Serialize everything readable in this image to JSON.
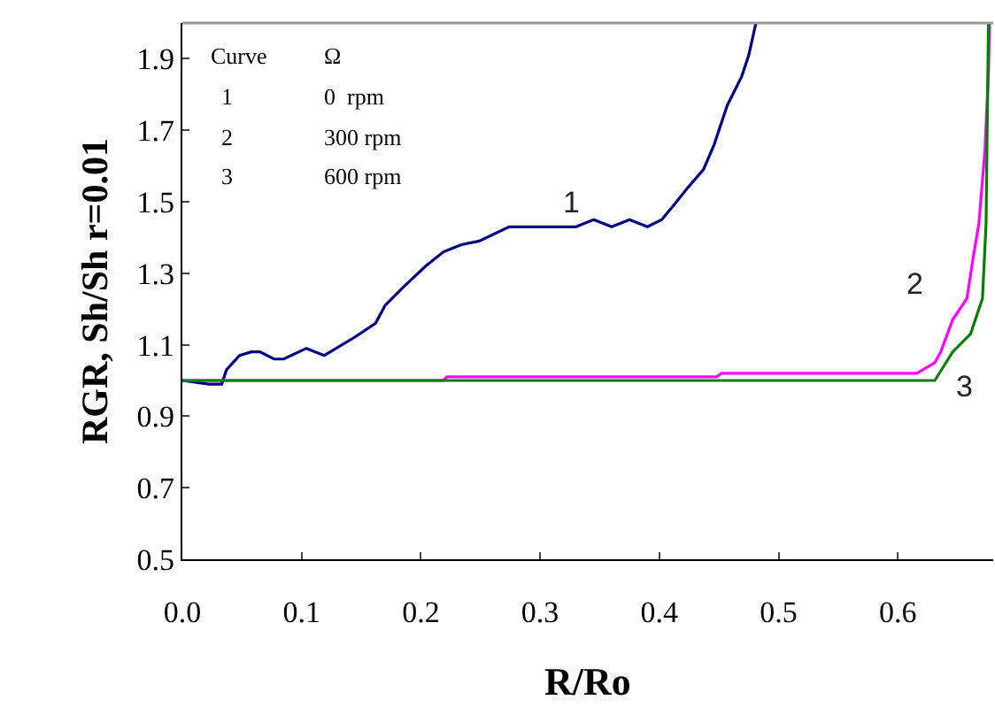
{
  "chart_data": {
    "type": "line",
    "xlabel": "R/Ro",
    "ylabel": "RGR, Sh/Sh r=0.01",
    "xlim": [
      0.0,
      0.68
    ],
    "xticks": [
      {
        "value": 0,
        "label": "0.0"
      },
      0.1,
      0.2,
      0.3,
      0.4,
      0.5,
      0.6
    ],
    "ylim": [
      0.5,
      2.0
    ],
    "yticks": [
      0.5,
      0.7,
      0.9,
      1.1,
      1.3,
      1.5,
      1.7,
      1.9
    ],
    "marker": "none",
    "line_style": "solid",
    "series": [
      {
        "color": "#000080",
        "x": [
          0,
          0.022,
          0.033,
          0.037,
          0.048,
          0.058,
          0.065,
          0.077,
          0.085,
          0.104,
          0.119,
          0.144,
          0.162,
          0.17,
          0.185,
          0.204,
          0.219,
          0.234,
          0.249,
          0.274,
          0.33,
          0.345,
          0.36,
          0.375,
          0.39,
          0.402,
          0.412,
          0.424,
          0.437,
          0.446,
          0.457,
          0.469,
          0.475,
          0.481
        ],
        "values": [
          1.0,
          0.99,
          0.99,
          1.03,
          1.07,
          1.08,
          1.08,
          1.06,
          1.06,
          1.09,
          1.07,
          1.12,
          1.16,
          1.21,
          1.26,
          1.32,
          1.36,
          1.38,
          1.39,
          1.43,
          1.43,
          1.45,
          1.43,
          1.45,
          1.43,
          1.45,
          1.49,
          1.54,
          1.59,
          1.66,
          1.77,
          1.85,
          1.91,
          2.0
        ]
      },
      {
        "color": "#ff00ff",
        "x": [
          0,
          0.219,
          0.222,
          0.448,
          0.452,
          0.612,
          0.616,
          0.631,
          0.636,
          0.646,
          0.658,
          0.663,
          0.668,
          0.673,
          0.676,
          0.677
        ],
        "values": [
          1.0,
          1.0,
          1.01,
          1.01,
          1.02,
          1.02,
          1.02,
          1.05,
          1.08,
          1.17,
          1.23,
          1.34,
          1.44,
          1.64,
          1.86,
          2.0
        ]
      },
      {
        "color": "#008000",
        "x": [
          0,
          0.631,
          0.646,
          0.661,
          0.671,
          0.674,
          0.676
        ],
        "values": [
          1.0,
          1.0,
          1.08,
          1.13,
          1.23,
          1.44,
          2.0
        ]
      }
    ],
    "annotations": [
      "Curve",
      "Ω",
      "1",
      "0  rpm",
      "2",
      "300 rpm",
      "3",
      "600 rpm",
      {
        "text": "1",
        "x": 0.33,
        "y": 1.43
      },
      {
        "text": "2",
        "x": 0.658,
        "y": 1.23
      },
      {
        "text": "3",
        "x": 0.646,
        "y": 1.08
      }
    ]
  }
}
